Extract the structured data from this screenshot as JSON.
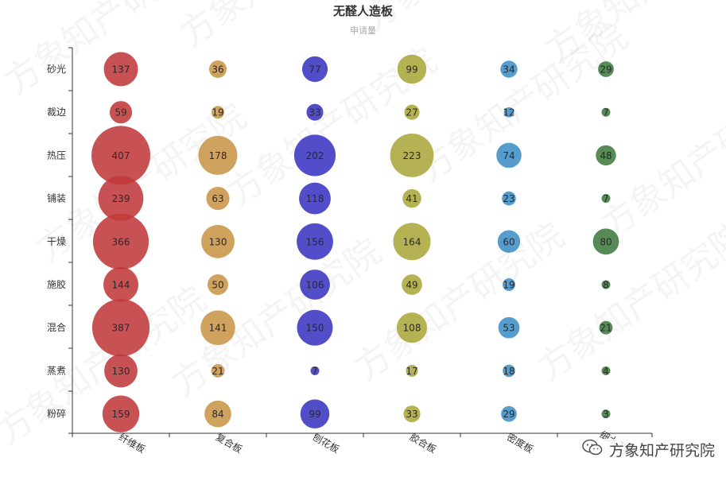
{
  "chart_data": {
    "type": "scatter",
    "title": "无醛人造板",
    "subtitle": "申请量",
    "x_categories": [
      "纤维板",
      "复合板",
      "刨花板",
      "胶合板",
      "密度板",
      "细木工板"
    ],
    "y_categories": [
      "砂光",
      "裁边",
      "热压",
      "铺装",
      "干燥",
      "施胶",
      "混合",
      "蒸煮",
      "粉碎"
    ],
    "series": [
      {
        "color": "#c0393b",
        "values": [
          137,
          59,
          407,
          239,
          366,
          144,
          387,
          130,
          159
        ]
      },
      {
        "color": "#c89547",
        "values": [
          36,
          19,
          178,
          63,
          130,
          50,
          141,
          21,
          84
        ]
      },
      {
        "color": "#3a34c2",
        "values": [
          77,
          33,
          202,
          118,
          156,
          106,
          150,
          7,
          99
        ]
      },
      {
        "color": "#aaa73a",
        "values": [
          99,
          27,
          223,
          41,
          164,
          49,
          108,
          17,
          33
        ]
      },
      {
        "color": "#3f8fc6",
        "values": [
          34,
          12,
          74,
          23,
          60,
          19,
          53,
          18,
          29
        ]
      },
      {
        "color": "#3f7a40",
        "values": [
          29,
          7,
          48,
          7,
          80,
          8,
          21,
          4,
          3
        ]
      }
    ],
    "grid": false,
    "legend": "none"
  },
  "watermark": "方象知产研究院",
  "brand": {
    "text": "方象知产研究院",
    "icon": "wechat-icon"
  }
}
